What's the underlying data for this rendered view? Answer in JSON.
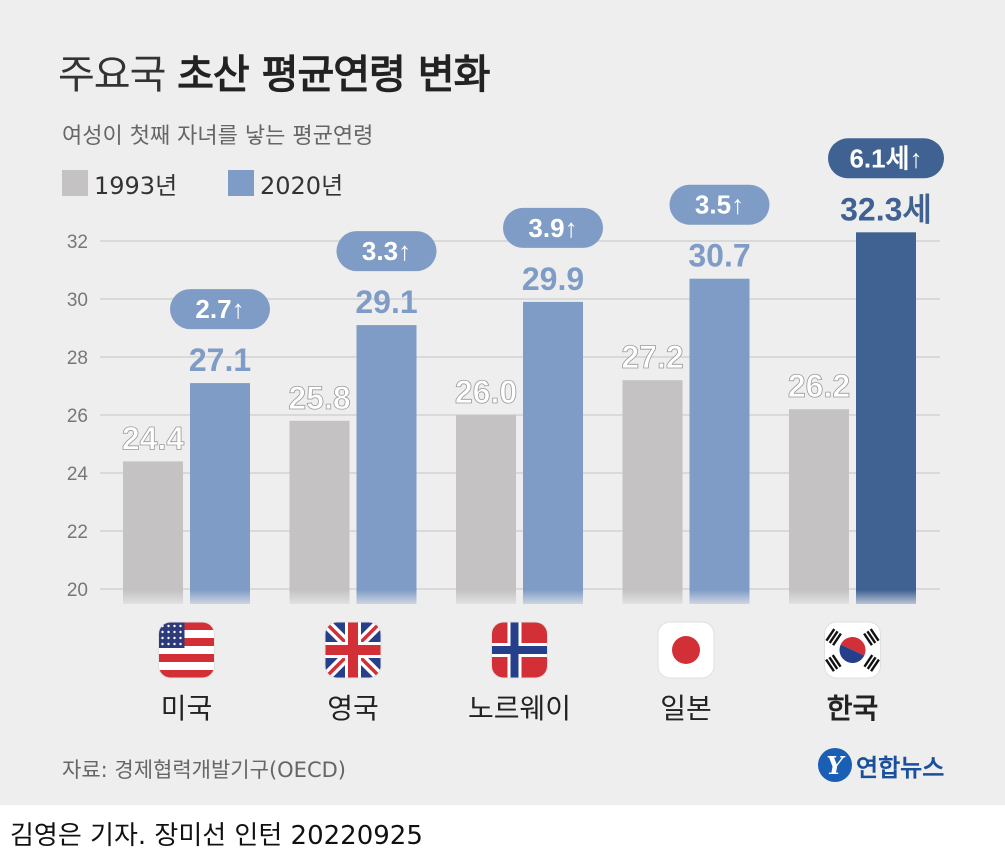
{
  "header": {
    "title_light": "주요국",
    "title_bold": "초산 평균연령 변화",
    "subtitle": "여성이 첫째 자녀를 낳는 평균연령"
  },
  "legend": [
    {
      "label": "1993년",
      "color": "#c4c2c2"
    },
    {
      "label": "2020년",
      "color": "#7f9cc6"
    }
  ],
  "colors": {
    "bar_1993": "#c4c2c2",
    "bar_2020": "#7f9cc6",
    "bar_korea_2020": "#3f6293",
    "label_1993": "#ffffff",
    "label_2020": "#7f9cc6",
    "label_korea": "#3f6293",
    "badge": "#7f9cc6",
    "badge_korea": "#3f6293",
    "gridline": "#d2d2d2"
  },
  "chart_data": {
    "type": "bar",
    "categories": [
      "미국",
      "영국",
      "노르웨이",
      "일본",
      "한국"
    ],
    "flags": [
      "us-flag-icon",
      "uk-flag-icon",
      "norway-flag-icon",
      "japan-flag-icon",
      "korea-flag-icon"
    ],
    "series": [
      {
        "name": "1993년",
        "values": [
          24.4,
          25.8,
          26.0,
          27.2,
          26.2
        ]
      },
      {
        "name": "2020년",
        "values": [
          27.1,
          29.1,
          29.9,
          30.7,
          32.3
        ]
      }
    ],
    "value_labels_1993": [
      "24.4",
      "25.8",
      "26.0",
      "27.2",
      "26.2"
    ],
    "value_labels_2020": [
      "27.1",
      "29.1",
      "29.9",
      "30.7",
      "32.3세"
    ],
    "change_labels": [
      "2.7↑",
      "3.3↑",
      "3.9↑",
      "3.5↑",
      "6.1세↑"
    ],
    "highlight_category": "한국",
    "yticks": [
      "20",
      "22",
      "24",
      "26",
      "28",
      "30",
      "32"
    ],
    "ylim": [
      20,
      32
    ],
    "grid": true,
    "legend_position": "top-left"
  },
  "footer": {
    "source": "자료: 경제협력개발기구(OECD)",
    "logo_mark": "Y",
    "logo_text": "연합뉴스",
    "credit": "김영은 기자. 장미선 인턴  20220925"
  }
}
